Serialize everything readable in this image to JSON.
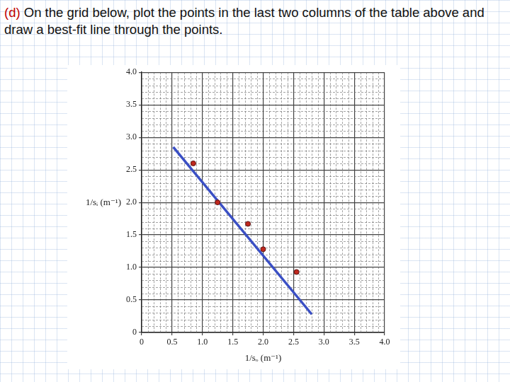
{
  "chart_data": {
    "type": "scatter",
    "title": "(d) On the grid below, plot the points in the last two columns of the table above and draw a best-fit line through the points.",
    "x_label": "1/sₒ (m⁻¹)",
    "y_label": "1/sᵢ (m⁻¹)",
    "series": [
      {
        "type": "scatter",
        "color": "#c0281e",
        "marker": "circle",
        "x": [
          0.85,
          1.25,
          1.75,
          2.0,
          2.55
        ],
        "values": [
          2.6,
          2.0,
          1.67,
          1.28,
          0.93
        ]
      },
      {
        "type": "line",
        "color": "#3a4fc4",
        "line_style": "solid",
        "x": [
          0.52,
          2.8
        ],
        "values": [
          2.85,
          0.28
        ]
      }
    ],
    "xlim": [
      0,
      4
    ],
    "ylim": [
      0,
      4
    ],
    "xticks": [
      0,
      0.5,
      {
        "value": 1,
        "label": "1.0"
      },
      1.5,
      {
        "value": 2,
        "label": "2.0"
      },
      2.5,
      {
        "value": 3,
        "label": "3.0"
      },
      3.5,
      {
        "value": 4,
        "label": "4.0"
      }
    ],
    "yticks": [
      0,
      0.5,
      {
        "value": 1,
        "label": "1.0"
      },
      1.5,
      {
        "value": 2,
        "label": "2.0"
      },
      2.5,
      {
        "value": 3,
        "label": "3.0"
      },
      3.5,
      {
        "value": 4,
        "label": "4.0"
      }
    ],
    "grid": true
  }
}
